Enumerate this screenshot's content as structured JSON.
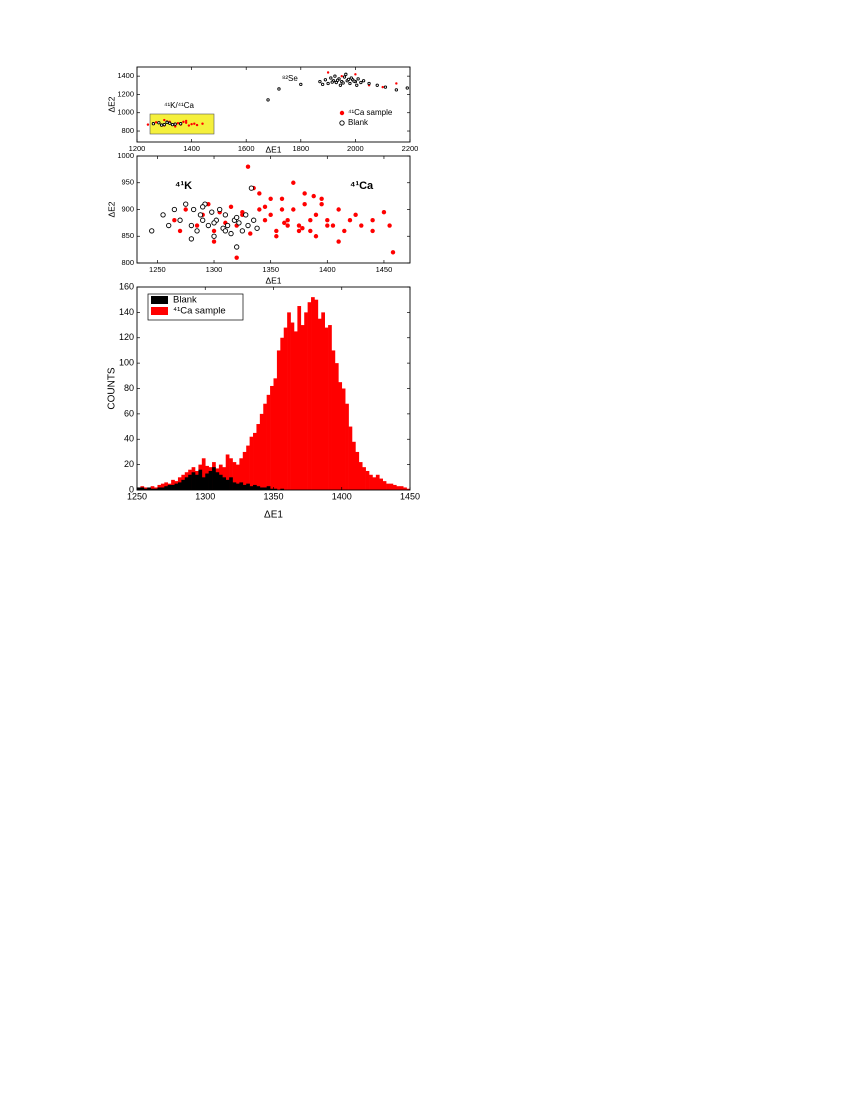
{
  "chart_data": [
    {
      "type": "scatter",
      "x_label": "ΔE1",
      "y_label": "ΔE2",
      "annotations": [
        "⁸²Se",
        "⁴¹K/⁴¹Ca"
      ],
      "xlim": [
        1200,
        2200
      ],
      "xticks": [
        1200,
        1400,
        1600,
        1800,
        2000,
        2200
      ],
      "ylim": [
        680,
        1500
      ],
      "yticks": [
        800,
        1000,
        1200,
        1400
      ],
      "legend": "right",
      "series": [
        {
          "name": "⁴¹Ca sample",
          "color": "#ff0000",
          "marker": "dot",
          "x": [
            1240,
            1260,
            1280,
            1300,
            1320,
            1340,
            1360,
            1380,
            1400,
            1420,
            1440,
            1270,
            1290,
            1310,
            1330,
            1350,
            1370,
            1390,
            1410,
            1300,
            1340,
            1380,
            1950,
            2000,
            2050,
            2100,
            1900,
            2150
          ],
          "values": [
            870,
            880,
            890,
            860,
            900,
            880,
            870,
            890,
            875,
            865,
            880,
            895,
            860,
            905,
            870,
            885,
            900,
            860,
            880,
            920,
            850,
            910,
            1400,
            1420,
            1300,
            1280,
            1440,
            1320
          ]
        },
        {
          "name": "Blank",
          "color": "#000000",
          "marker": "open-circle",
          "x": [
            1870,
            1890,
            1900,
            1910,
            1920,
            1930,
            1940,
            1950,
            1960,
            1970,
            1980,
            1990,
            2000,
            2010,
            2020,
            2030,
            2050,
            2080,
            2110,
            1880,
            1925,
            1945,
            1965,
            1985,
            2005,
            1935,
            1955,
            1975,
            1995,
            1915,
            1680,
            1720,
            1800,
            2150,
            2190,
            1260,
            1280,
            1300,
            1320,
            1340,
            1360,
            1290,
            1310,
            1330
          ],
          "values": [
            1340,
            1360,
            1320,
            1380,
            1350,
            1330,
            1370,
            1340,
            1390,
            1350,
            1320,
            1360,
            1340,
            1370,
            1330,
            1350,
            1320,
            1300,
            1280,
            1310,
            1400,
            1300,
            1420,
            1380,
            1300,
            1355,
            1325,
            1365,
            1345,
            1335,
            1140,
            1260,
            1310,
            1250,
            1270,
            880,
            890,
            870,
            885,
            875,
            880,
            865,
            895,
            870
          ]
        }
      ]
    },
    {
      "type": "scatter",
      "x_label": "ΔE1",
      "y_label": "ΔE2",
      "annotations": [
        "⁴¹K",
        "⁴¹Ca"
      ],
      "xlim": [
        1232,
        1473
      ],
      "xticks": [
        1250,
        1300,
        1350,
        1400,
        1450
      ],
      "ylim": [
        800,
        1000
      ],
      "yticks": [
        800,
        850,
        900,
        950,
        1000
      ],
      "series": [
        {
          "name": "⁴¹Ca sample",
          "color": "#ff0000",
          "marker": "dot",
          "x": [
            1265,
            1275,
            1285,
            1290,
            1295,
            1300,
            1305,
            1310,
            1315,
            1320,
            1325,
            1330,
            1335,
            1340,
            1345,
            1350,
            1355,
            1360,
            1365,
            1370,
            1375,
            1380,
            1385,
            1390,
            1395,
            1400,
            1405,
            1410,
            1415,
            1420,
            1425,
            1430,
            1440,
            1450,
            1458,
            1270,
            1300,
            1320,
            1330,
            1340,
            1350,
            1355,
            1360,
            1365,
            1370,
            1375,
            1380,
            1385,
            1390,
            1395,
            1400,
            1345,
            1362,
            1378,
            1388,
            1325,
            1332,
            1410,
            1440,
            1455
          ],
          "values": [
            880,
            900,
            870,
            890,
            910,
            860,
            895,
            875,
            905,
            870,
            890,
            980,
            940,
            900,
            880,
            920,
            860,
            900,
            880,
            950,
            870,
            910,
            860,
            890,
            920,
            880,
            870,
            900,
            860,
            880,
            890,
            870,
            860,
            895,
            820,
            860,
            840,
            810,
            870,
            930,
            890,
            850,
            920,
            870,
            900,
            860,
            930,
            880,
            850,
            910,
            870,
            905,
            875,
            865,
            925,
            895,
            855,
            840,
            880,
            870
          ]
        },
        {
          "name": "Blank",
          "color": "#000000",
          "marker": "open-circle",
          "x": [
            1245,
            1255,
            1260,
            1265,
            1270,
            1275,
            1280,
            1282,
            1285,
            1288,
            1290,
            1292,
            1295,
            1298,
            1300,
            1302,
            1305,
            1308,
            1310,
            1312,
            1315,
            1318,
            1320,
            1322,
            1325,
            1328,
            1330,
            1333,
            1335,
            1338,
            1280,
            1290,
            1300,
            1310,
            1320
          ],
          "values": [
            860,
            890,
            870,
            900,
            880,
            910,
            870,
            900,
            860,
            890,
            880,
            910,
            870,
            895,
            850,
            880,
            900,
            865,
            890,
            870,
            855,
            880,
            830,
            875,
            860,
            890,
            870,
            940,
            880,
            865,
            845,
            905,
            875,
            860,
            885
          ]
        }
      ]
    },
    {
      "type": "histogram",
      "x_label": "ΔE1",
      "y_label": "COUNTS",
      "xlim": [
        1250,
        1450
      ],
      "xticks": [
        1250,
        1300,
        1350,
        1400,
        1450
      ],
      "ylim": [
        0,
        160
      ],
      "yticks": [
        0,
        20,
        40,
        60,
        80,
        100,
        120,
        140,
        160
      ],
      "legend": "upper left",
      "bins": [
        1250,
        1252.5,
        1255,
        1257.5,
        1260,
        1262.5,
        1265,
        1267.5,
        1270,
        1272.5,
        1275,
        1277.5,
        1280,
        1282.5,
        1285,
        1287.5,
        1290,
        1292.5,
        1295,
        1297.5,
        1300,
        1302.5,
        1305,
        1307.5,
        1310,
        1312.5,
        1315,
        1317.5,
        1320,
        1322.5,
        1325,
        1327.5,
        1330,
        1332.5,
        1335,
        1337.5,
        1340,
        1342.5,
        1345,
        1347.5,
        1350,
        1352.5,
        1355,
        1357.5,
        1360,
        1362.5,
        1365,
        1367.5,
        1370,
        1372.5,
        1375,
        1377.5,
        1380,
        1382.5,
        1385,
        1387.5,
        1390,
        1392.5,
        1395,
        1397.5,
        1400,
        1402.5,
        1405,
        1407.5,
        1410,
        1412.5,
        1415,
        1417.5,
        1420,
        1422.5,
        1425,
        1427.5,
        1430,
        1432.5,
        1435,
        1437.5,
        1440,
        1442.5,
        1445,
        1447.5,
        1450
      ],
      "series": [
        {
          "name": "Blank",
          "color": "#000000",
          "values": [
            2,
            2,
            1,
            2,
            1,
            1,
            2,
            2,
            3,
            4,
            4,
            5,
            6,
            8,
            10,
            12,
            14,
            12,
            16,
            10,
            13,
            15,
            18,
            14,
            12,
            10,
            8,
            10,
            6,
            5,
            6,
            4,
            5,
            3,
            4,
            3,
            2,
            2,
            3,
            1,
            1,
            0,
            1,
            0,
            0,
            0,
            0,
            0,
            0,
            0,
            0,
            0,
            0,
            0,
            0,
            0,
            0,
            0,
            0,
            0,
            0,
            0,
            0,
            0,
            0,
            0,
            0,
            0,
            0,
            0,
            0,
            0,
            0,
            0,
            0,
            0,
            0,
            0,
            0,
            0
          ]
        },
        {
          "name": "⁴¹Ca sample",
          "color": "#ff0000",
          "values": [
            2,
            3,
            2,
            1,
            3,
            2,
            4,
            5,
            6,
            5,
            8,
            7,
            10,
            12,
            14,
            16,
            18,
            15,
            20,
            25,
            19,
            18,
            22,
            17,
            20,
            18,
            28,
            25,
            22,
            20,
            25,
            30,
            35,
            42,
            45,
            52,
            60,
            68,
            75,
            82,
            88,
            110,
            120,
            128,
            140,
            132,
            125,
            145,
            130,
            140,
            148,
            152,
            150,
            135,
            140,
            128,
            130,
            110,
            100,
            85,
            80,
            68,
            50,
            38,
            30,
            22,
            18,
            15,
            12,
            10,
            12,
            9,
            7,
            5,
            5,
            4,
            3,
            3,
            2,
            1
          ]
        }
      ]
    }
  ]
}
